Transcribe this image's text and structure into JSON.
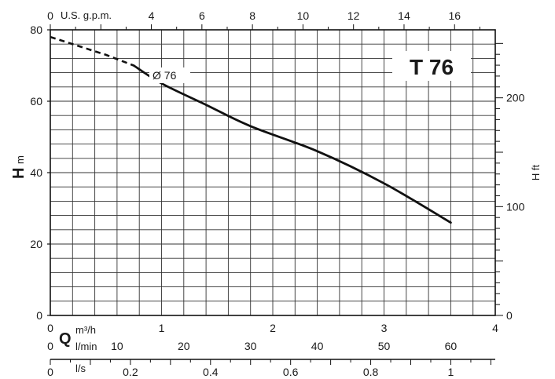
{
  "chart_data": {
    "type": "line",
    "title": "T 76",
    "curve_label": "Ø 76",
    "grid": true,
    "legend": "none",
    "series": [
      {
        "name": "Ø 76",
        "x_m3h": [
          0.75,
          1.0,
          1.4,
          1.8,
          2.4,
          3.0,
          3.6
        ],
        "y_m": [
          70,
          65,
          59,
          53,
          46,
          37,
          26
        ]
      }
    ],
    "extrapolated": {
      "x_m3h": [
        0.0,
        0.5,
        0.75
      ],
      "y_m": [
        78,
        73,
        70
      ]
    },
    "y_left": {
      "letter": "H",
      "unit": "m",
      "range": [
        0,
        80
      ],
      "ticks": [
        "0",
        "20",
        "40",
        "60",
        "80"
      ],
      "tick_values": [
        0,
        20,
        40,
        60,
        80
      ]
    },
    "y_right": {
      "label": "H ft",
      "ticks": [
        "0",
        "100",
        "200"
      ],
      "tick_values": [
        0,
        100,
        200
      ],
      "range": [
        0,
        262.5
      ]
    },
    "x_m3h": {
      "letter": "Q",
      "unit": "m³/h",
      "range": [
        0,
        4
      ],
      "ticks": [
        "0",
        "1",
        "2",
        "3",
        "4"
      ],
      "tick_values": [
        0,
        1,
        2,
        3,
        4
      ]
    },
    "x_lmin": {
      "unit": "l/min",
      "range": [
        0,
        66.67
      ],
      "ticks": [
        "0",
        "10",
        "20",
        "30",
        "40",
        "50",
        "60"
      ],
      "tick_values": [
        0,
        10,
        20,
        30,
        40,
        50,
        60
      ]
    },
    "x_ls": {
      "unit": "l/s",
      "range": [
        0,
        1.111
      ],
      "ticks": [
        "0",
        "0.2",
        "0.4",
        "0.6",
        "0.8",
        "1"
      ],
      "tick_values": [
        0,
        0.2,
        0.4,
        0.6,
        0.8,
        1.0
      ]
    },
    "x_gpm": {
      "unit": "U.S. g.p.m.",
      "range": [
        0,
        17.61
      ],
      "ticks": [
        "0",
        "4",
        "6",
        "8",
        "10",
        "12",
        "14",
        "16"
      ],
      "tick_values": [
        0,
        4,
        6,
        8,
        10,
        12,
        14,
        16
      ]
    }
  }
}
